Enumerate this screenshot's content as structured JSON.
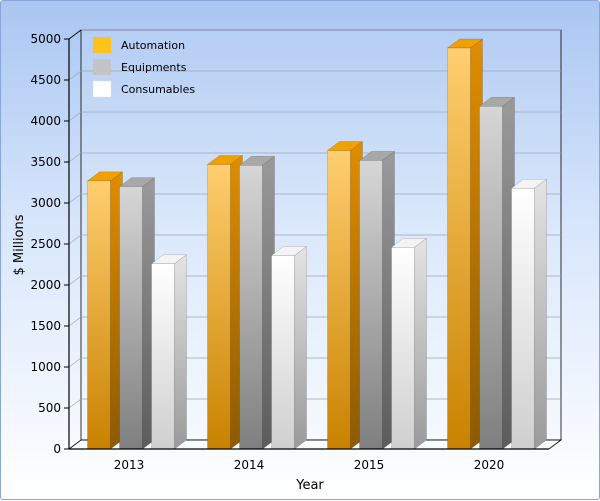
{
  "chart_data": {
    "type": "bar",
    "categories": [
      "2013",
      "2014",
      "2015",
      "2020"
    ],
    "series": [
      {
        "name": "Automation",
        "values": [
          3270,
          3470,
          3640,
          4890
        ],
        "color": "#f5a623"
      },
      {
        "name": "Equipments",
        "values": [
          3200,
          3460,
          3520,
          4180
        ],
        "color": "#b4b4b4"
      },
      {
        "name": "Consumables",
        "values": [
          2260,
          2360,
          2460,
          3180
        ],
        "color": "#ffffff"
      }
    ],
    "xlabel": "Year",
    "ylabel": "$ Millions",
    "ylim": [
      0,
      5000
    ],
    "yticks": [
      0,
      500,
      1000,
      1500,
      2000,
      2500,
      3000,
      3500,
      4000,
      4500,
      5000
    ],
    "grid": true,
    "legend_position": "top-left",
    "style": "3d"
  }
}
